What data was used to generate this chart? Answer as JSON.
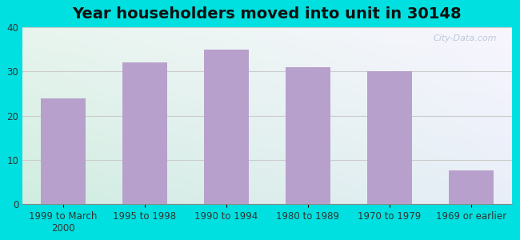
{
  "title": "Year householders moved into unit in 30148",
  "categories": [
    "1999 to March\n2000",
    "1995 to 1998",
    "1990 to 1994",
    "1980 to 1989",
    "1970 to 1979",
    "1969 or earlier"
  ],
  "values": [
    24,
    32,
    35,
    31,
    30,
    7.5
  ],
  "bar_color": "#b8a0cc",
  "ylim": [
    0,
    40
  ],
  "yticks": [
    0,
    10,
    20,
    30,
    40
  ],
  "background_outer": "#00e0e0",
  "bg_color_topleft": "#e8f5ee",
  "bg_color_topright": "#f0eef8",
  "bg_color_bottomleft": "#d0ede0",
  "bg_color_bottomright": "#e8eef8",
  "grid_color": "#cccccc",
  "title_fontsize": 14,
  "tick_fontsize": 8.5,
  "watermark": "City-Data.com"
}
